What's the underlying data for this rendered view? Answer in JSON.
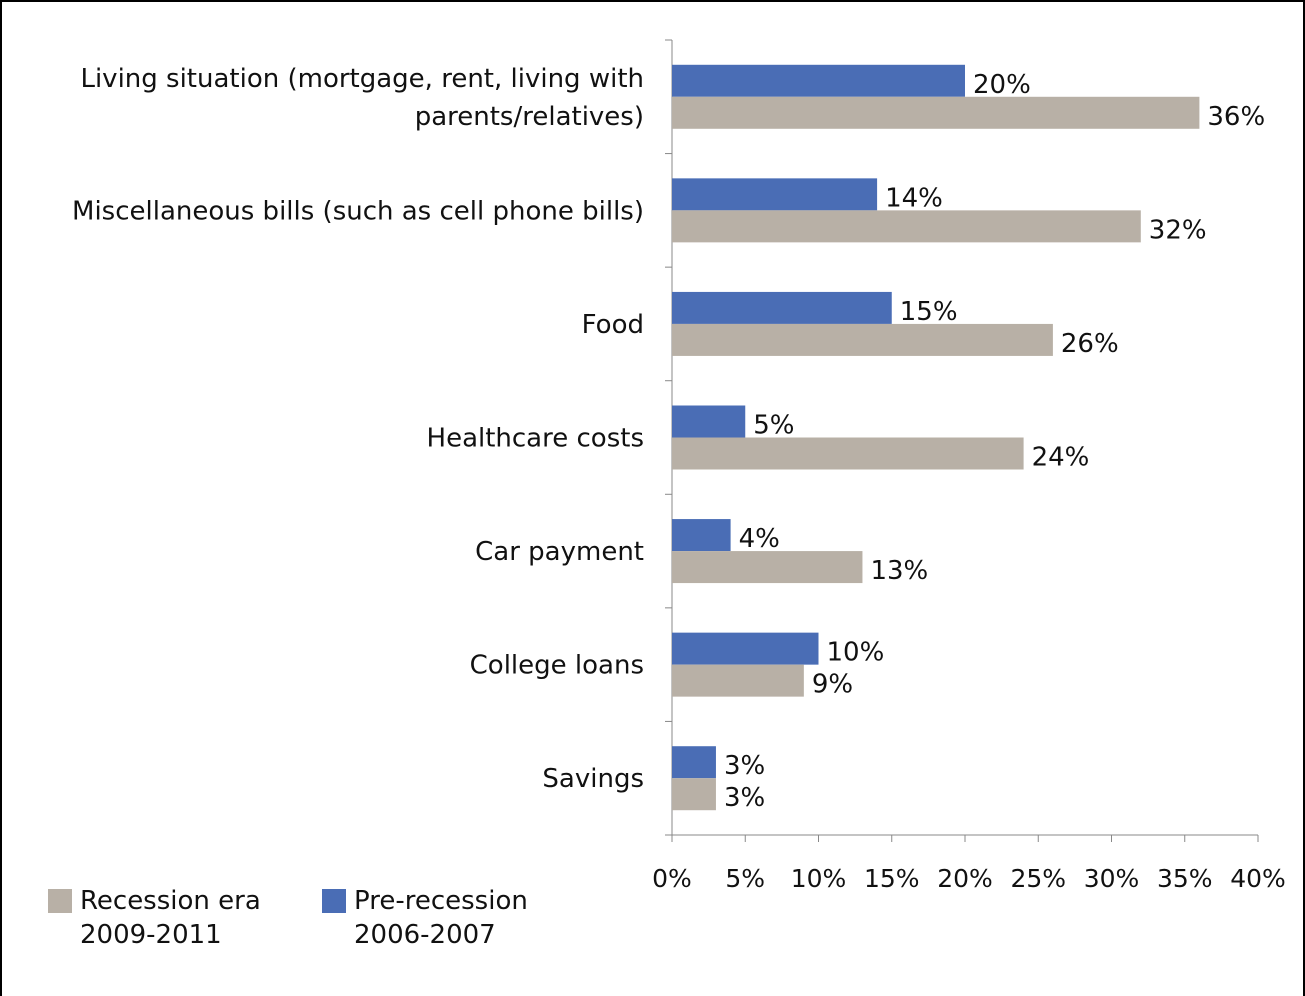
{
  "chart_data": {
    "type": "bar",
    "orientation": "horizontal",
    "categories": [
      "Living situation (mortgage, rent, living with parents/relatives)",
      "Miscellaneous bills (such as cell phone bills)",
      "Food",
      "Healthcare costs",
      "Car payment",
      "College loans",
      "Savings"
    ],
    "series": [
      {
        "name": "Pre-recession 2006-2007",
        "color": "#4a6db5",
        "values": [
          20,
          14,
          15,
          5,
          4,
          10,
          3
        ],
        "labels": [
          "20%",
          "14%",
          "15%",
          "5%",
          "4%",
          "10%",
          "3%"
        ]
      },
      {
        "name": "Recession era 2009-2011",
        "color": "#b8b0a6",
        "values": [
          36,
          32,
          26,
          24,
          13,
          9,
          3
        ],
        "labels": [
          "36%",
          "32%",
          "26%",
          "24%",
          "13%",
          "9%",
          "3%"
        ]
      }
    ],
    "xlim": [
      0,
      40
    ],
    "xticks": [
      0,
      5,
      10,
      15,
      20,
      25,
      30,
      35,
      40
    ],
    "xtick_labels": [
      "0%",
      "5%",
      "10%",
      "15%",
      "20%",
      "25%",
      "30%",
      "35%",
      "40%"
    ],
    "grid": false,
    "legend_position": "bottom-left"
  },
  "legend": [
    {
      "line1": "Recession era",
      "line2": "2009-2011",
      "color": "#b8b0a6"
    },
    {
      "line1": "Pre-recession",
      "line2": "2006-2007",
      "color": "#4a6db5"
    }
  ],
  "category_lines": [
    [
      "Living situation (mortgage, rent, living with",
      "parents/relatives)"
    ],
    [
      "Miscellaneous bills (such as cell phone bills)"
    ],
    [
      "Food"
    ],
    [
      "Healthcare costs"
    ],
    [
      "Car payment"
    ],
    [
      "College loans"
    ],
    [
      "Savings"
    ]
  ]
}
